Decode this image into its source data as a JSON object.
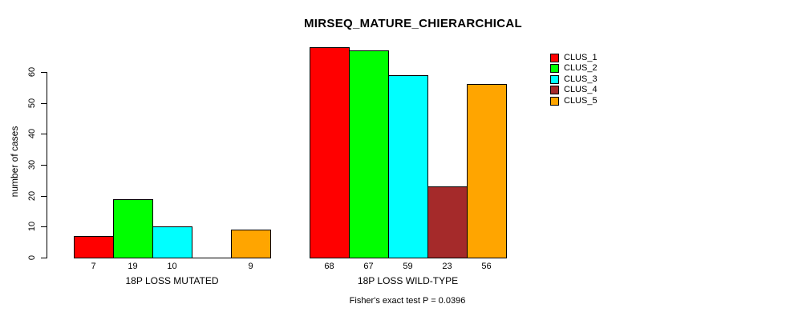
{
  "chart_data": {
    "type": "bar",
    "title": "MIRSEQ_MATURE_CHIERARCHICAL",
    "ylabel": "number of cases",
    "xlabel": "",
    "ylim": [
      0,
      60
    ],
    "yticks": [
      0,
      10,
      20,
      30,
      40,
      50,
      60
    ],
    "grid": false,
    "legend_position": "right",
    "series": [
      {
        "name": "CLUS_1",
        "color": "#FF0000"
      },
      {
        "name": "CLUS_2",
        "color": "#00FF00"
      },
      {
        "name": "CLUS_3",
        "color": "#00FFFF"
      },
      {
        "name": "CLUS_4",
        "color": "#A52A2A"
      },
      {
        "name": "CLUS_5",
        "color": "#FFA500"
      }
    ],
    "groups": [
      {
        "label": "18P LOSS MUTATED",
        "values": [
          7,
          19,
          10,
          0,
          9
        ],
        "bar_labels": [
          "7",
          "19",
          "10",
          "",
          "9"
        ]
      },
      {
        "label": "18P LOSS WILD-TYPE",
        "values": [
          68,
          67,
          59,
          23,
          56
        ],
        "bar_labels": [
          "68",
          "67",
          "59",
          "23",
          "56"
        ]
      }
    ],
    "caption": "Fisher's exact test P = 0.0396"
  }
}
